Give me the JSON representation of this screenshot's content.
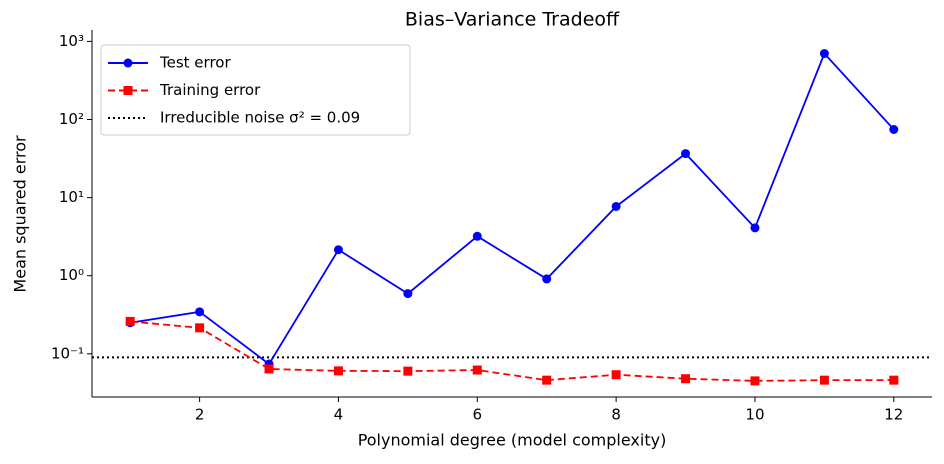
{
  "chart_data": {
    "type": "line",
    "title": "Bias–Variance Tradeoff",
    "xlabel": "Polynomial degree (model complexity)",
    "ylabel": "Mean squared error",
    "x": [
      1,
      2,
      3,
      4,
      5,
      6,
      7,
      8,
      9,
      10,
      11,
      12
    ],
    "series": [
      {
        "name": "Test error",
        "color": "#0000ff",
        "linestyle": "solid",
        "marker": "circle",
        "values": [
          0.25,
          0.345,
          0.074,
          2.15,
          0.59,
          3.2,
          0.91,
          7.7,
          36.6,
          4.1,
          700,
          74.5
        ]
      },
      {
        "name": "Training error",
        "color": "#ff0000",
        "linestyle": "dashed",
        "marker": "square",
        "values": [
          0.26,
          0.215,
          0.064,
          0.0605,
          0.06,
          0.062,
          0.046,
          0.054,
          0.048,
          0.045,
          0.046,
          0.046
        ]
      }
    ],
    "hline": {
      "name": "Irreducible noise σ² = 0.09",
      "value": 0.09,
      "color": "#000000",
      "linestyle": "dotted"
    },
    "xlim": [
      0.45,
      12.55
    ],
    "ylim": [
      0.028,
      1400
    ],
    "yscale": "log",
    "xticks": [
      2,
      4,
      6,
      8,
      10,
      12
    ],
    "yticks": [
      {
        "value": 0.1,
        "label": "10⁻¹"
      },
      {
        "value": 1,
        "label": "10⁰"
      },
      {
        "value": 10,
        "label": "10¹"
      },
      {
        "value": 100,
        "label": "10²"
      },
      {
        "value": 1000,
        "label": "10³"
      }
    ],
    "legend": "upper left",
    "grid": false
  }
}
